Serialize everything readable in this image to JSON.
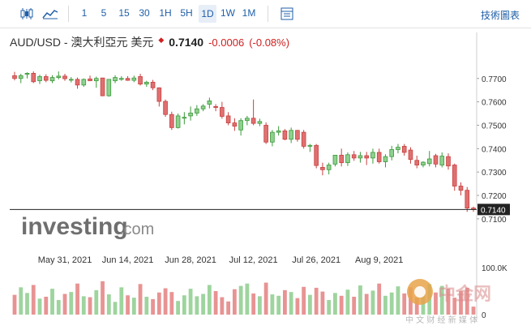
{
  "toolbar": {
    "icons": [
      "candlestick-icon",
      "area-chart-icon",
      "settings-panel-icon"
    ],
    "timeframes": [
      "1",
      "5",
      "15",
      "30",
      "1H",
      "5H",
      "1D",
      "1W",
      "1M"
    ],
    "active_timeframe": "1D",
    "tech_chart_label": "技術圖表"
  },
  "header": {
    "symbol": "AUD/USD - 澳大利亞元 美元",
    "price": "0.7140",
    "change": "-0.0006",
    "change_pct": "(-0.08%)",
    "down_color": "#d02020"
  },
  "watermark": {
    "text_main": "investing",
    "text_suffix": ".com"
  },
  "stamp": {
    "text_main": "中金网",
    "text_sub": "中 文 财 经 新 媒 体"
  },
  "colors": {
    "up": "#3a9a3a",
    "up_fill": "#8fd08f",
    "down": "#c84040",
    "down_fill": "#e07070",
    "vol_up": "#9ed49e",
    "vol_down": "#e89393"
  },
  "chart_data": {
    "type": "candlestick",
    "x_tick_labels": [
      "May 31, 2021",
      "Jun 14, 2021",
      "Jun 28, 2021",
      "Jul 12, 2021",
      "Jul 26, 2021",
      "Aug 9, 2021"
    ],
    "y_tick_labels": [
      "0.7700",
      "0.7600",
      "0.7500",
      "0.7400",
      "0.7300",
      "0.7200",
      "0.7100"
    ],
    "ylim": [
      0.7065,
      0.7765
    ],
    "current_price_label": "0.7140",
    "current_price": 0.714,
    "volume_axis_labels": [
      "100.0K",
      "0"
    ],
    "volume_max": 100000,
    "candles": [
      {
        "o": 0.7712,
        "h": 0.7728,
        "l": 0.7692,
        "c": 0.77
      },
      {
        "o": 0.77,
        "h": 0.772,
        "l": 0.768,
        "c": 0.7712
      },
      {
        "o": 0.7718,
        "h": 0.7726,
        "l": 0.77,
        "c": 0.7722
      },
      {
        "o": 0.7722,
        "h": 0.773,
        "l": 0.768,
        "c": 0.7686
      },
      {
        "o": 0.769,
        "h": 0.7716,
        "l": 0.7676,
        "c": 0.7708
      },
      {
        "o": 0.7708,
        "h": 0.7718,
        "l": 0.7684,
        "c": 0.7692
      },
      {
        "o": 0.769,
        "h": 0.7714,
        "l": 0.768,
        "c": 0.7704
      },
      {
        "o": 0.7704,
        "h": 0.773,
        "l": 0.7696,
        "c": 0.771
      },
      {
        "o": 0.771,
        "h": 0.772,
        "l": 0.769,
        "c": 0.7699
      },
      {
        "o": 0.7695,
        "h": 0.7706,
        "l": 0.7683,
        "c": 0.7696
      },
      {
        "o": 0.7696,
        "h": 0.7704,
        "l": 0.7656,
        "c": 0.7672
      },
      {
        "o": 0.7672,
        "h": 0.77,
        "l": 0.7664,
        "c": 0.7696
      },
      {
        "o": 0.7698,
        "h": 0.7712,
        "l": 0.769,
        "c": 0.769
      },
      {
        "o": 0.769,
        "h": 0.7708,
        "l": 0.766,
        "c": 0.77
      },
      {
        "o": 0.7702,
        "h": 0.7702,
        "l": 0.7624,
        "c": 0.7626
      },
      {
        "o": 0.7626,
        "h": 0.7696,
        "l": 0.7622,
        "c": 0.7696
      },
      {
        "o": 0.769,
        "h": 0.7714,
        "l": 0.768,
        "c": 0.7704
      },
      {
        "o": 0.7696,
        "h": 0.771,
        "l": 0.769,
        "c": 0.77
      },
      {
        "o": 0.77,
        "h": 0.771,
        "l": 0.769,
        "c": 0.7692
      },
      {
        "o": 0.7692,
        "h": 0.7712,
        "l": 0.7684,
        "c": 0.7702
      },
      {
        "o": 0.7708,
        "h": 0.772,
        "l": 0.767,
        "c": 0.7676
      },
      {
        "o": 0.7676,
        "h": 0.769,
        "l": 0.7664,
        "c": 0.7684
      },
      {
        "o": 0.7684,
        "h": 0.7694,
        "l": 0.765,
        "c": 0.766
      },
      {
        "o": 0.766,
        "h": 0.7662,
        "l": 0.758,
        "c": 0.7602
      },
      {
        "o": 0.7602,
        "h": 0.761,
        "l": 0.7536,
        "c": 0.7546
      },
      {
        "o": 0.7546,
        "h": 0.7558,
        "l": 0.748,
        "c": 0.749
      },
      {
        "o": 0.749,
        "h": 0.755,
        "l": 0.7486,
        "c": 0.754
      },
      {
        "o": 0.753,
        "h": 0.7556,
        "l": 0.7504,
        "c": 0.7534
      },
      {
        "o": 0.754,
        "h": 0.758,
        "l": 0.752,
        "c": 0.7552
      },
      {
        "o": 0.7552,
        "h": 0.7586,
        "l": 0.754,
        "c": 0.757
      },
      {
        "o": 0.757,
        "h": 0.759,
        "l": 0.756,
        "c": 0.7582
      },
      {
        "o": 0.759,
        "h": 0.7618,
        "l": 0.7572,
        "c": 0.7604
      },
      {
        "o": 0.758,
        "h": 0.759,
        "l": 0.756,
        "c": 0.7576
      },
      {
        "o": 0.7576,
        "h": 0.76,
        "l": 0.7528,
        "c": 0.7538
      },
      {
        "o": 0.754,
        "h": 0.7556,
        "l": 0.75,
        "c": 0.751
      },
      {
        "o": 0.751,
        "h": 0.753,
        "l": 0.7476,
        "c": 0.7496
      },
      {
        "o": 0.748,
        "h": 0.753,
        "l": 0.7456,
        "c": 0.752
      },
      {
        "o": 0.752,
        "h": 0.754,
        "l": 0.75,
        "c": 0.753
      },
      {
        "o": 0.753,
        "h": 0.761,
        "l": 0.75,
        "c": 0.7508
      },
      {
        "o": 0.7508,
        "h": 0.7528,
        "l": 0.7496,
        "c": 0.7516
      },
      {
        "o": 0.75,
        "h": 0.7512,
        "l": 0.742,
        "c": 0.7428
      },
      {
        "o": 0.7428,
        "h": 0.748,
        "l": 0.741,
        "c": 0.747
      },
      {
        "o": 0.747,
        "h": 0.7496,
        "l": 0.7456,
        "c": 0.7476
      },
      {
        "o": 0.7476,
        "h": 0.7484,
        "l": 0.7436,
        "c": 0.744
      },
      {
        "o": 0.744,
        "h": 0.749,
        "l": 0.7424,
        "c": 0.7478
      },
      {
        "o": 0.7478,
        "h": 0.748,
        "l": 0.743,
        "c": 0.744
      },
      {
        "o": 0.747,
        "h": 0.748,
        "l": 0.74,
        "c": 0.741
      },
      {
        "o": 0.741,
        "h": 0.742,
        "l": 0.7386,
        "c": 0.7414
      },
      {
        "o": 0.7414,
        "h": 0.742,
        "l": 0.7316,
        "c": 0.7328
      },
      {
        "o": 0.732,
        "h": 0.734,
        "l": 0.7286,
        "c": 0.731
      },
      {
        "o": 0.731,
        "h": 0.734,
        "l": 0.729,
        "c": 0.733
      },
      {
        "o": 0.7334,
        "h": 0.7372,
        "l": 0.7324,
        "c": 0.7372
      },
      {
        "o": 0.7372,
        "h": 0.74,
        "l": 0.7324,
        "c": 0.734
      },
      {
        "o": 0.734,
        "h": 0.7384,
        "l": 0.7326,
        "c": 0.7374
      },
      {
        "o": 0.7374,
        "h": 0.739,
        "l": 0.7348,
        "c": 0.736
      },
      {
        "o": 0.736,
        "h": 0.7386,
        "l": 0.734,
        "c": 0.737
      },
      {
        "o": 0.737,
        "h": 0.7386,
        "l": 0.733,
        "c": 0.736
      },
      {
        "o": 0.736,
        "h": 0.74,
        "l": 0.7336,
        "c": 0.7384
      },
      {
        "o": 0.7384,
        "h": 0.74,
        "l": 0.7336,
        "c": 0.7344
      },
      {
        "o": 0.7344,
        "h": 0.7376,
        "l": 0.732,
        "c": 0.7366
      },
      {
        "o": 0.7366,
        "h": 0.7412,
        "l": 0.735,
        "c": 0.7396
      },
      {
        "o": 0.7396,
        "h": 0.742,
        "l": 0.738,
        "c": 0.7406
      },
      {
        "o": 0.741,
        "h": 0.742,
        "l": 0.737,
        "c": 0.7384
      },
      {
        "o": 0.7394,
        "h": 0.7406,
        "l": 0.7336,
        "c": 0.7354
      },
      {
        "o": 0.735,
        "h": 0.737,
        "l": 0.7316,
        "c": 0.733
      },
      {
        "o": 0.733,
        "h": 0.7346,
        "l": 0.732,
        "c": 0.7342
      },
      {
        "o": 0.7336,
        "h": 0.739,
        "l": 0.7324,
        "c": 0.7356
      },
      {
        "o": 0.737,
        "h": 0.7378,
        "l": 0.732,
        "c": 0.7334
      },
      {
        "o": 0.733,
        "h": 0.7384,
        "l": 0.732,
        "c": 0.7368
      },
      {
        "o": 0.7366,
        "h": 0.738,
        "l": 0.731,
        "c": 0.7326
      },
      {
        "o": 0.733,
        "h": 0.7336,
        "l": 0.722,
        "c": 0.724
      },
      {
        "o": 0.724,
        "h": 0.7256,
        "l": 0.72,
        "c": 0.7222
      },
      {
        "o": 0.7222,
        "h": 0.7236,
        "l": 0.713,
        "c": 0.7146
      },
      {
        "o": 0.7146,
        "h": 0.7152,
        "l": 0.713,
        "c": 0.714
      }
    ],
    "volumes": [
      42,
      58,
      46,
      63,
      34,
      38,
      55,
      31,
      44,
      48,
      66,
      39,
      37,
      52,
      71,
      43,
      27,
      58,
      41,
      36,
      65,
      38,
      33,
      47,
      56,
      48,
      29,
      41,
      55,
      39,
      44,
      63,
      50,
      37,
      28,
      54,
      61,
      66,
      45,
      39,
      68,
      43,
      40,
      52,
      48,
      35,
      59,
      42,
      57,
      49,
      31,
      46,
      40,
      53,
      38,
      62,
      44,
      51,
      66,
      40,
      47,
      60,
      45,
      58,
      36,
      49,
      65,
      47,
      61,
      55,
      36,
      50,
      57,
      17
    ]
  }
}
